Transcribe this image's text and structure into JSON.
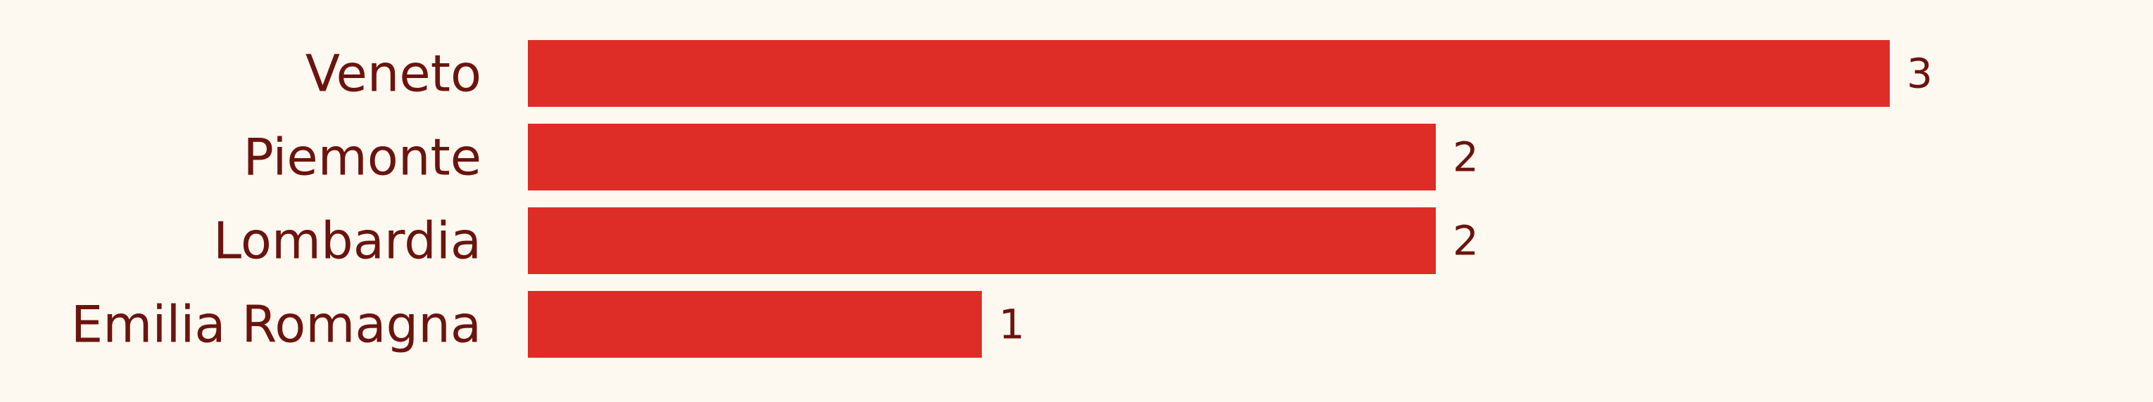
{
  "chart_data": {
    "type": "bar",
    "orientation": "horizontal",
    "categories": [
      "Veneto",
      "Piemonte",
      "Lombardia",
      "Emilia Romagna"
    ],
    "values": [
      3,
      2,
      2,
      1
    ],
    "xlim": [
      0,
      3
    ],
    "grid": false,
    "legend": "none",
    "colors": {
      "bar": "#de2d26",
      "text": "#6b140e",
      "background": "#fdf8f0"
    }
  }
}
